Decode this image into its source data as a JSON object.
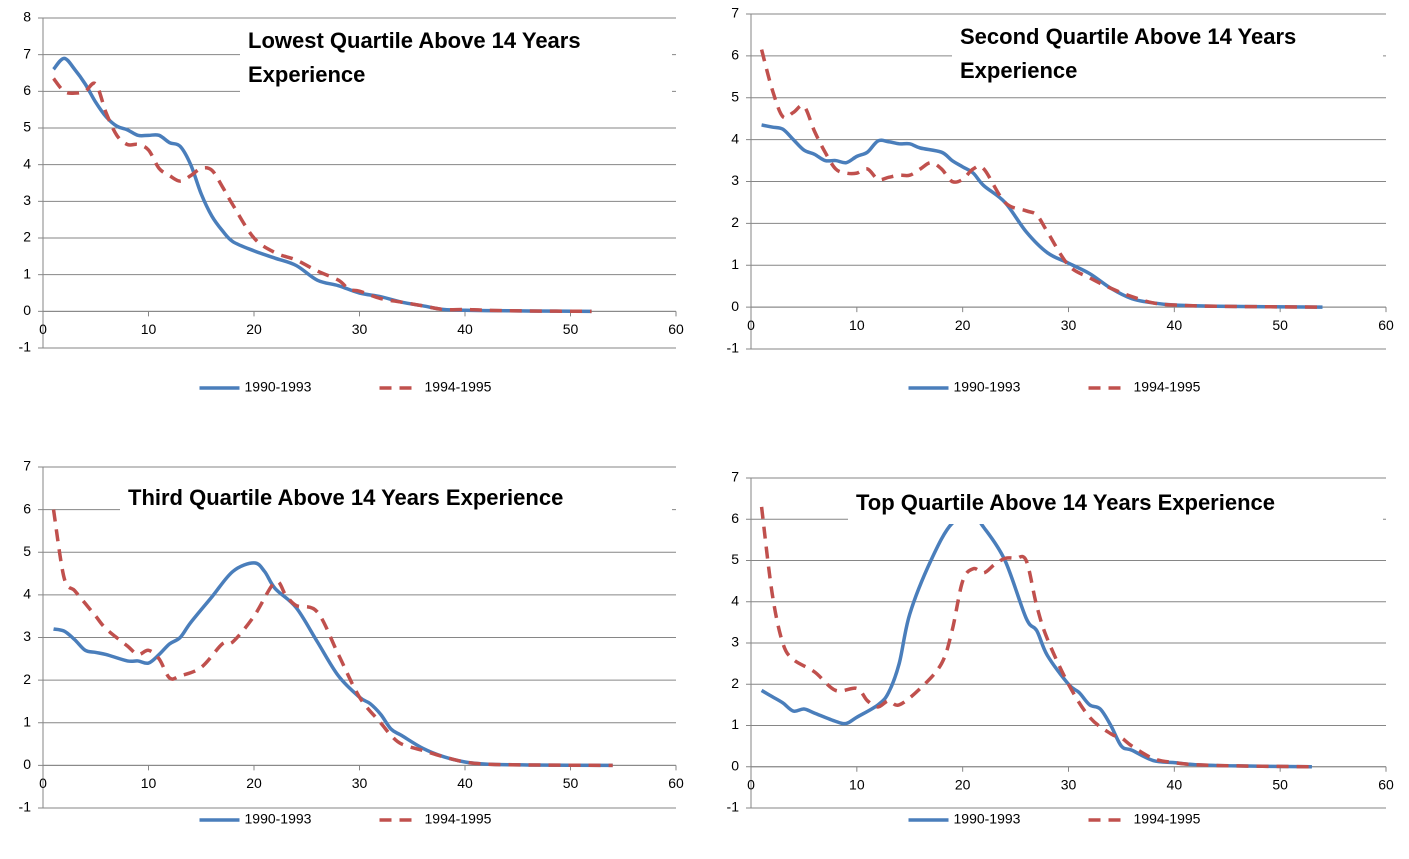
{
  "chart_data": [
    {
      "type": "line",
      "title": "Lowest Quartile Above 14 Years Experience",
      "ylim": [
        -1,
        8
      ],
      "yticks": [
        -1,
        0,
        1,
        2,
        3,
        4,
        5,
        6,
        7,
        8
      ],
      "xlim": [
        0,
        60
      ],
      "xticks": [
        0,
        10,
        20,
        30,
        40,
        50,
        60
      ],
      "grid": true,
      "legend": "bottom",
      "series": [
        {
          "name": "1990-1993",
          "color": "#4a7ebb",
          "style": "solid",
          "x": [
            1,
            2,
            3,
            4,
            5,
            6,
            7,
            8,
            9,
            10,
            11,
            12,
            13,
            14,
            15,
            16,
            17,
            18,
            20,
            22,
            24,
            26,
            28,
            30,
            32,
            34,
            36,
            38,
            40,
            42,
            46,
            52
          ],
          "values": [
            6.6,
            6.9,
            6.6,
            6.2,
            5.7,
            5.3,
            5.05,
            4.95,
            4.8,
            4.8,
            4.8,
            4.6,
            4.5,
            4.0,
            3.2,
            2.6,
            2.2,
            1.9,
            1.65,
            1.45,
            1.25,
            0.85,
            0.7,
            0.5,
            0.4,
            0.25,
            0.15,
            0.05,
            0.03,
            0.02,
            0.01,
            0
          ]
        },
        {
          "name": "1994-1995",
          "color": "#c0504d",
          "style": "dashed",
          "x": [
            1,
            2,
            3,
            4,
            5,
            6,
            7,
            8,
            9,
            10,
            11,
            12,
            13,
            14,
            15,
            16,
            17,
            18,
            20,
            22,
            24,
            26,
            28,
            29,
            30,
            32,
            34,
            36,
            38,
            40,
            42,
            46,
            52
          ],
          "values": [
            6.35,
            6.0,
            5.95,
            6.0,
            6.2,
            5.4,
            4.8,
            4.55,
            4.55,
            4.4,
            3.9,
            3.7,
            3.55,
            3.7,
            3.9,
            3.85,
            3.4,
            2.9,
            2.0,
            1.6,
            1.4,
            1.1,
            0.85,
            0.6,
            0.55,
            0.35,
            0.25,
            0.15,
            0.05,
            0.05,
            0.03,
            0.01,
            0
          ]
        }
      ]
    },
    {
      "type": "line",
      "title": "Second Quartile Above 14 Years Experience",
      "ylim": [
        -1,
        7
      ],
      "yticks": [
        -1,
        0,
        1,
        2,
        3,
        4,
        5,
        6,
        7
      ],
      "xlim": [
        0,
        60
      ],
      "xticks": [
        0,
        10,
        20,
        30,
        40,
        50,
        60
      ],
      "grid": true,
      "legend": "bottom",
      "series": [
        {
          "name": "1990-1993",
          "color": "#4a7ebb",
          "style": "solid",
          "x": [
            1,
            2,
            3,
            4,
            5,
            6,
            7,
            8,
            9,
            10,
            11,
            12,
            13,
            14,
            15,
            16,
            18,
            19,
            20,
            21,
            22,
            24,
            26,
            28,
            30,
            32,
            34,
            36,
            38,
            40,
            44,
            54
          ],
          "values": [
            4.35,
            4.3,
            4.25,
            4.0,
            3.75,
            3.65,
            3.5,
            3.5,
            3.45,
            3.6,
            3.7,
            3.97,
            3.95,
            3.9,
            3.9,
            3.8,
            3.7,
            3.5,
            3.35,
            3.2,
            2.9,
            2.5,
            1.8,
            1.3,
            1.05,
            0.8,
            0.45,
            0.2,
            0.1,
            0.05,
            0.02,
            0
          ]
        },
        {
          "name": "1994-1995",
          "color": "#c0504d",
          "style": "dashed",
          "x": [
            1,
            2,
            3,
            4,
            5,
            6,
            7,
            8,
            9,
            10,
            11,
            12,
            13,
            14,
            15,
            16,
            17,
            18,
            19,
            20,
            21,
            22,
            24,
            26,
            27,
            28,
            30,
            32,
            34,
            36,
            38,
            40,
            44,
            54
          ],
          "values": [
            6.15,
            5.2,
            4.55,
            4.65,
            4.8,
            4.2,
            3.7,
            3.3,
            3.2,
            3.2,
            3.3,
            3.05,
            3.1,
            3.15,
            3.15,
            3.3,
            3.45,
            3.3,
            3.0,
            3.05,
            3.3,
            3.3,
            2.5,
            2.3,
            2.2,
            1.8,
            1.0,
            0.7,
            0.45,
            0.25,
            0.1,
            0.05,
            0.02,
            0
          ]
        }
      ]
    },
    {
      "type": "line",
      "title": "Third Quartile Above 14 Years Experience",
      "ylim": [
        -1,
        7
      ],
      "yticks": [
        -1,
        0,
        1,
        2,
        3,
        4,
        5,
        6,
        7
      ],
      "xlim": [
        0,
        60
      ],
      "xticks": [
        0,
        10,
        20,
        30,
        40,
        50,
        60
      ],
      "grid": true,
      "legend": "bottom",
      "series": [
        {
          "name": "1990-1993",
          "color": "#4a7ebb",
          "style": "solid",
          "x": [
            1,
            2,
            3,
            4,
            5,
            6,
            8,
            9,
            10,
            11,
            12,
            13,
            14,
            16,
            18,
            20,
            21,
            22,
            24,
            26,
            28,
            30,
            31,
            32,
            33,
            34,
            36,
            38,
            40,
            42,
            46,
            54
          ],
          "values": [
            3.2,
            3.15,
            2.95,
            2.7,
            2.65,
            2.6,
            2.45,
            2.45,
            2.4,
            2.6,
            2.85,
            3.0,
            3.35,
            3.95,
            4.55,
            4.75,
            4.55,
            4.15,
            3.7,
            2.9,
            2.1,
            1.6,
            1.45,
            1.2,
            0.85,
            0.7,
            0.4,
            0.2,
            0.08,
            0.03,
            0.01,
            0
          ]
        },
        {
          "name": "1994-1995",
          "color": "#c0504d",
          "style": "dashed",
          "x": [
            1,
            2,
            3,
            4,
            5,
            6,
            8,
            9,
            10,
            11,
            12,
            13,
            15,
            17,
            18,
            20,
            22,
            23,
            24,
            26,
            28,
            30,
            32,
            33,
            34,
            36,
            38,
            40,
            42,
            46,
            54
          ],
          "values": [
            6.0,
            4.4,
            4.1,
            3.8,
            3.5,
            3.2,
            2.8,
            2.6,
            2.7,
            2.5,
            2.05,
            2.1,
            2.3,
            2.85,
            2.9,
            3.5,
            4.3,
            4.0,
            3.75,
            3.6,
            2.6,
            1.6,
            1.0,
            0.7,
            0.5,
            0.35,
            0.2,
            0.08,
            0.03,
            0.01,
            0
          ]
        }
      ]
    },
    {
      "type": "line",
      "title": "Top Quartile Above 14 Years Experience",
      "ylim": [
        -1,
        7
      ],
      "yticks": [
        -1,
        0,
        1,
        2,
        3,
        4,
        5,
        6,
        7
      ],
      "xlim": [
        0,
        60
      ],
      "xticks": [
        0,
        10,
        20,
        30,
        40,
        50,
        60
      ],
      "grid": true,
      "legend": "bottom",
      "series": [
        {
          "name": "1990-1993",
          "color": "#4a7ebb",
          "style": "solid",
          "x": [
            1,
            2,
            3,
            4,
            5,
            6,
            8,
            9,
            10,
            12,
            13,
            14,
            15,
            17,
            19,
            21,
            22,
            24,
            26,
            27,
            28,
            30,
            31,
            32,
            33,
            34,
            35,
            36,
            38,
            40,
            42,
            46,
            53
          ],
          "values": [
            1.85,
            1.7,
            1.55,
            1.35,
            1.4,
            1.3,
            1.1,
            1.05,
            1.2,
            1.5,
            1.8,
            2.5,
            3.7,
            5.0,
            5.9,
            6.05,
            5.8,
            5.0,
            3.6,
            3.3,
            2.7,
            2.0,
            1.8,
            1.5,
            1.4,
            1.0,
            0.5,
            0.4,
            0.15,
            0.1,
            0.05,
            0.02,
            0
          ]
        },
        {
          "name": "1994-1995",
          "color": "#c0504d",
          "style": "dashed",
          "x": [
            1,
            2,
            3,
            4,
            6,
            8,
            10,
            11,
            12,
            13,
            14,
            16,
            18,
            19,
            20,
            21,
            22,
            23,
            24,
            25,
            26,
            27,
            28,
            30,
            32,
            34,
            35,
            36,
            38,
            40,
            42,
            46,
            53
          ],
          "values": [
            6.3,
            4.2,
            3.0,
            2.6,
            2.3,
            1.85,
            1.9,
            1.6,
            1.45,
            1.6,
            1.5,
            1.9,
            2.5,
            3.3,
            4.5,
            4.8,
            4.7,
            4.9,
            5.05,
            5.05,
            5.0,
            3.9,
            3.1,
            2.0,
            1.2,
            0.8,
            0.7,
            0.5,
            0.2,
            0.1,
            0.05,
            0.02,
            0
          ]
        }
      ]
    }
  ]
}
